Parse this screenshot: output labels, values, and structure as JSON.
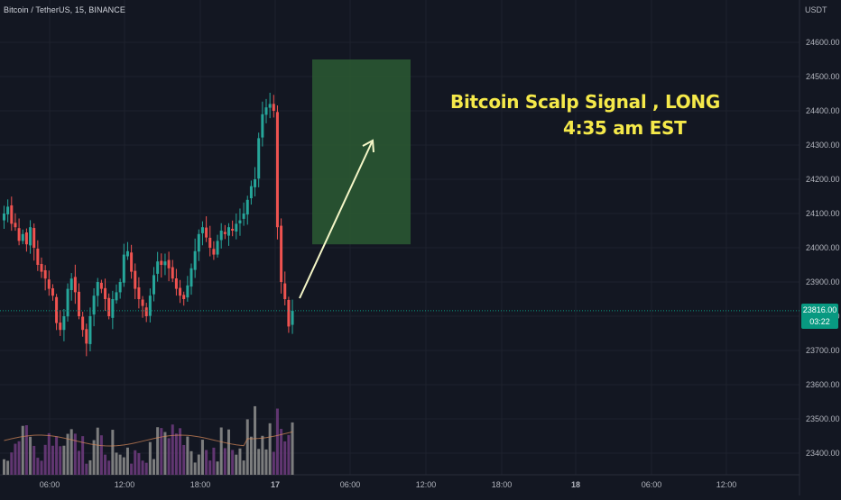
{
  "header": {
    "symbol": "Bitcoin / TetherUS, 15, BINANCE",
    "currency": "USDT"
  },
  "annotation": {
    "line1": "Bitcoin Scalp Signal , LONG",
    "line2": "4:35 am EST"
  },
  "last_price": {
    "value": "23816.00",
    "countdown": "03:22"
  },
  "colors": {
    "background": "#131722",
    "bull": "#26a69a",
    "bear": "#ef5350",
    "volume_bull": "#888888",
    "volume_bear": "#6a3a7a",
    "target_box": "#2b5a33",
    "arrow": "#f5f7c8",
    "annotation": "#f5e94a",
    "price_line": "#089981"
  },
  "chart_data": {
    "type": "candlestick",
    "title": "",
    "y_ticks": [
      23400,
      23500,
      23600,
      23700,
      23800,
      23900,
      24000,
      24100,
      24200,
      24300,
      24400,
      24500,
      24600
    ],
    "y_tick_labels": [
      "23400.00",
      "23500.00",
      "23600.00",
      "23700.00",
      "23800.00",
      "23900.00",
      "24000.00",
      "24100.00",
      "24200.00",
      "24300.00",
      "24400.00",
      "24500.00",
      "24600.00"
    ],
    "ylim": [
      23330,
      24680
    ],
    "x_tick_labels": [
      "06:00",
      "12:00",
      "18:00",
      "17",
      "06:00",
      "12:00",
      "18:00",
      "18",
      "06:00",
      "12:00"
    ],
    "candles_close": [
      24100,
      24120,
      24070,
      24060,
      24020,
      24040,
      24010,
      24060,
      24000,
      23950,
      23930,
      23910,
      23880,
      23860,
      23780,
      23760,
      23800,
      23880,
      23910,
      23870,
      23800,
      23760,
      23720,
      23800,
      23860,
      23900,
      23880,
      23850,
      23800,
      23850,
      23870,
      23900,
      23980,
      23990,
      23930,
      23880,
      23850,
      23830,
      23800,
      23860,
      23920,
      23960,
      23950,
      23960,
      23940,
      23910,
      23880,
      23860,
      23850,
      23890,
      23940,
      23990,
      24040,
      24060,
      24030,
      24000,
      23980,
      24020,
      24050,
      24040,
      24060,
      24050,
      24070,
      24080,
      24100,
      24140,
      24180,
      24200,
      24320,
      24390,
      24410,
      24420,
      24400,
      24060,
      23900,
      23850,
      23770,
      23816
    ],
    "target_zone": {
      "low": 24010,
      "high": 24550
    },
    "last_price": 23816,
    "volume_scale": [
      0,
      100
    ]
  }
}
